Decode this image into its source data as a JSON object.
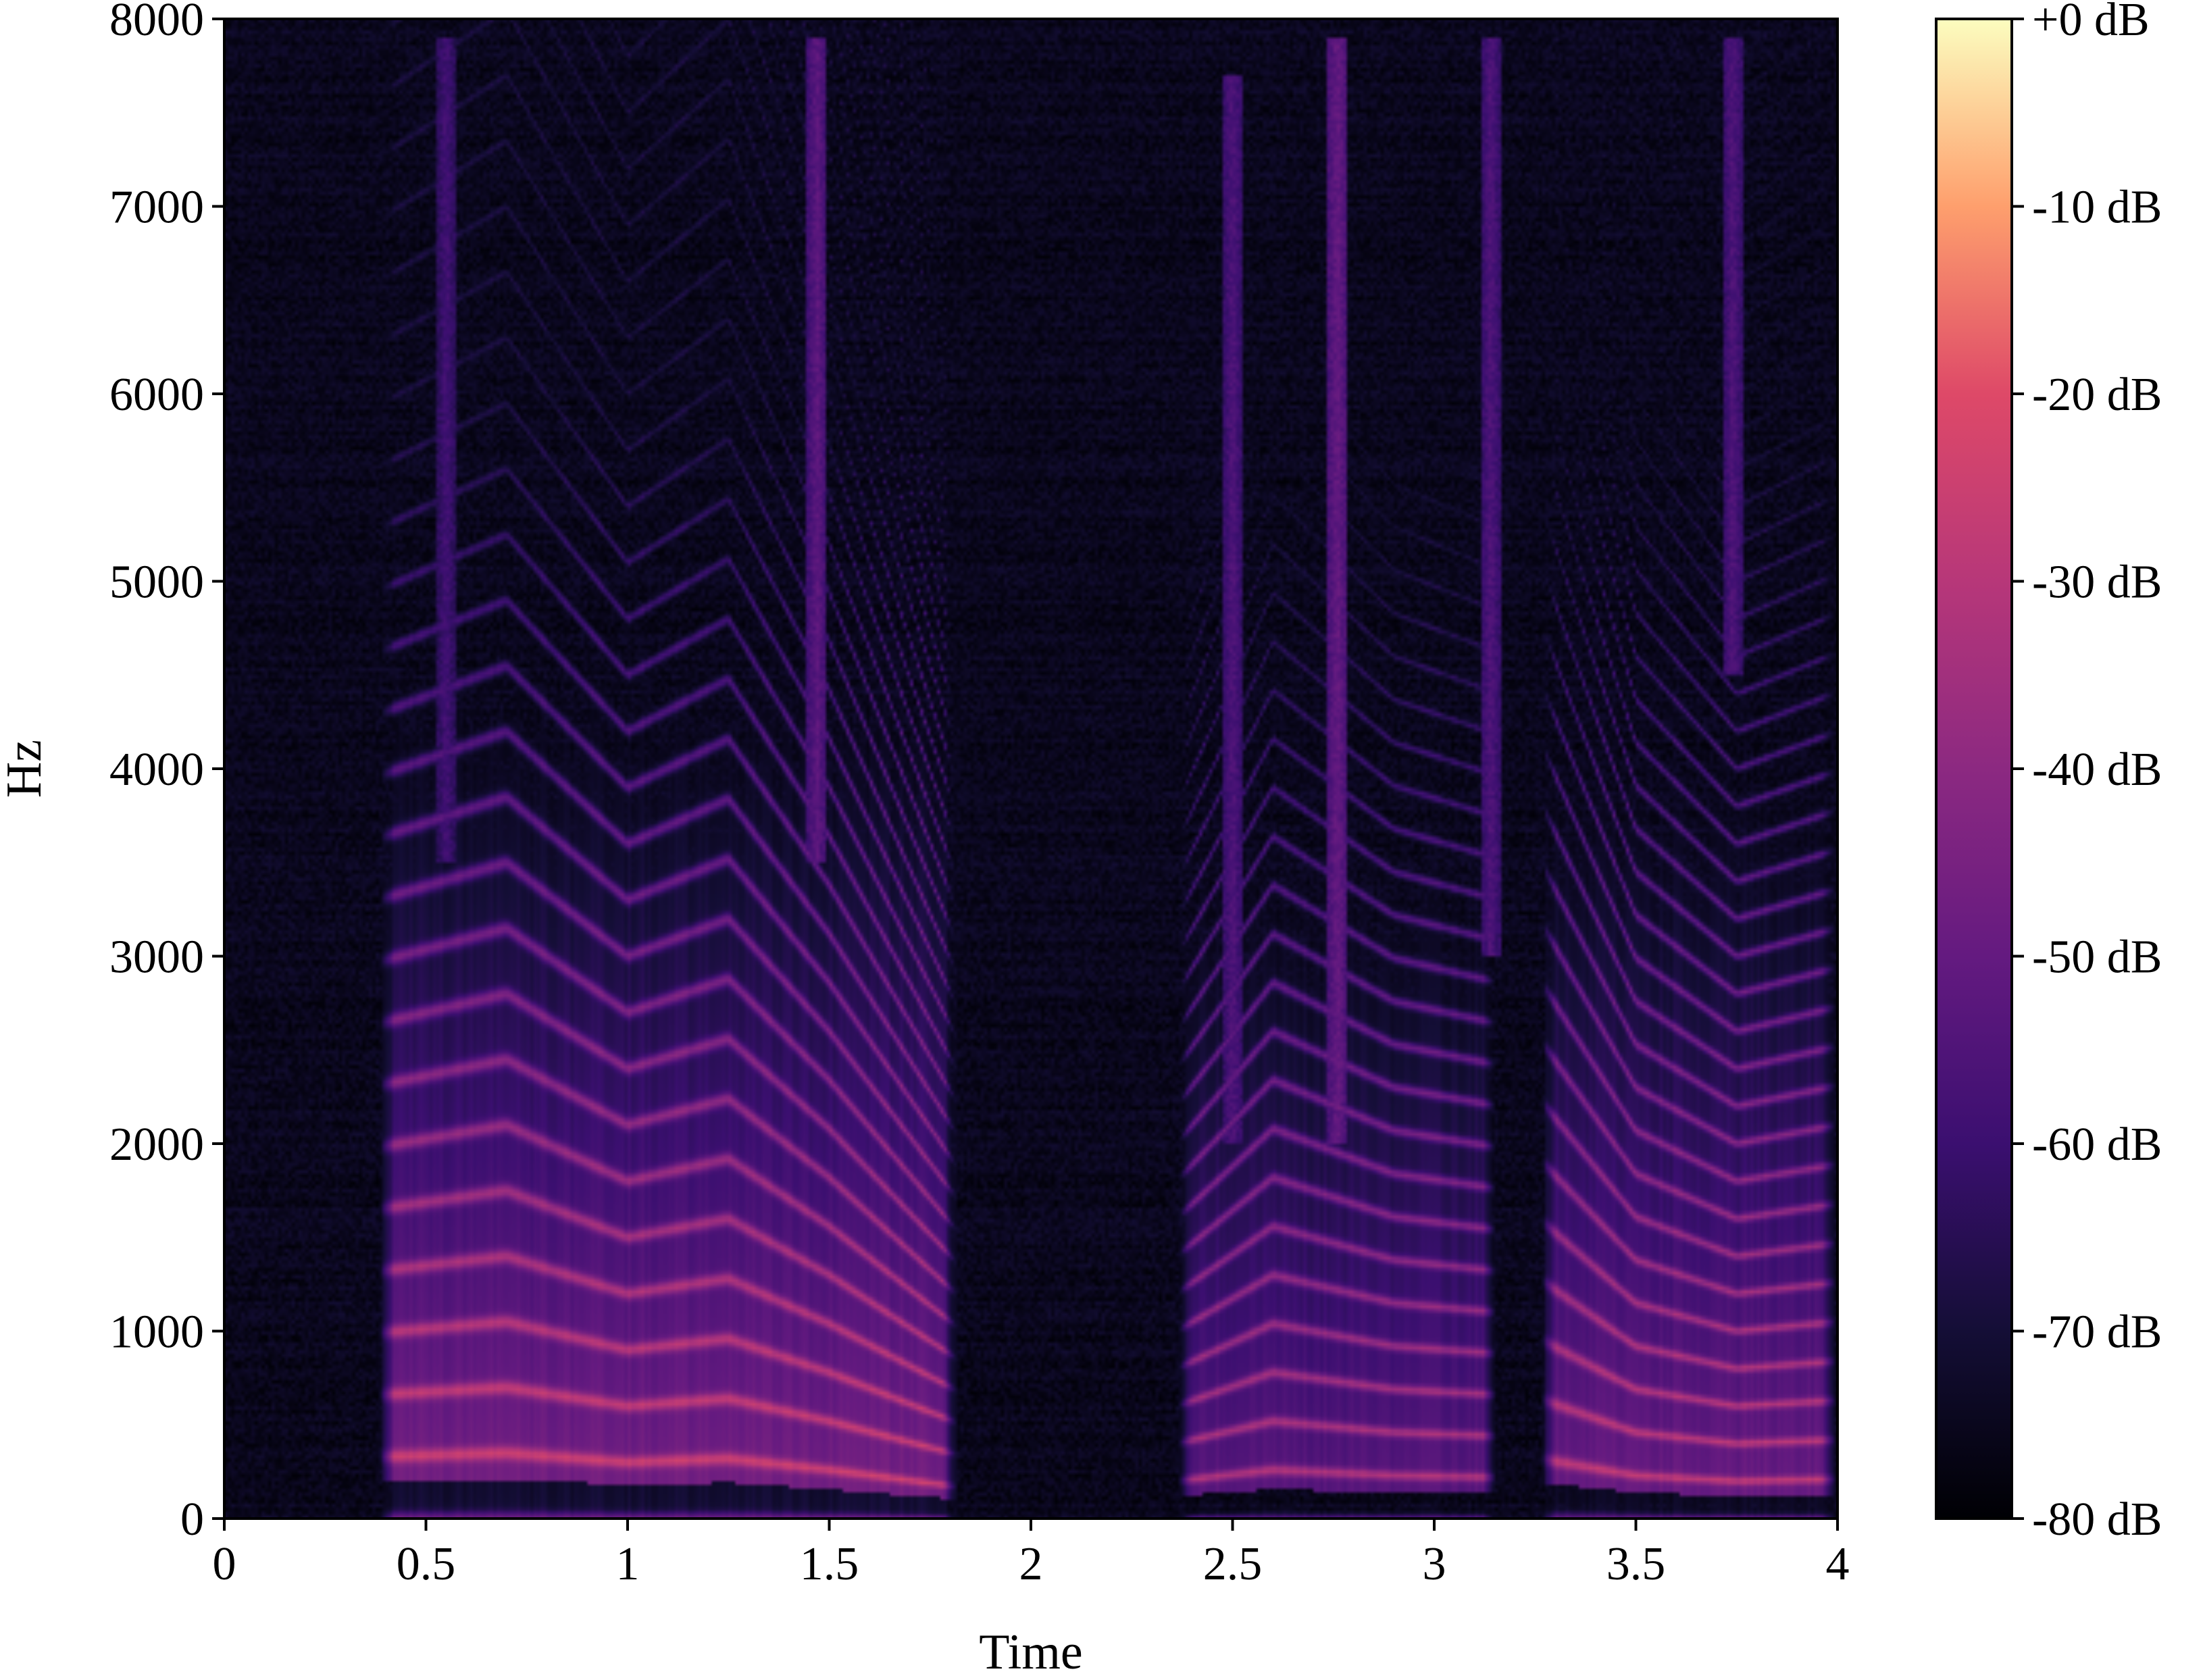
{
  "chart_data": {
    "type": "heatmap",
    "title": "",
    "xlabel": "Time",
    "ylabel": "Hz",
    "xlim": [
      0,
      4.0
    ],
    "ylim": [
      0,
      8000
    ],
    "xticks": [
      0,
      0.5,
      1,
      1.5,
      2,
      2.5,
      3,
      3.5,
      4
    ],
    "xtick_labels": [
      "0",
      "0.5",
      "1",
      "1.5",
      "2",
      "2.5",
      "3",
      "3.5",
      "4"
    ],
    "yticks": [
      0,
      1000,
      2000,
      3000,
      4000,
      5000,
      6000,
      7000,
      8000
    ],
    "ytick_labels": [
      "0",
      "1000",
      "2000",
      "3000",
      "4000",
      "5000",
      "6000",
      "7000",
      "8000"
    ],
    "colormap": "magma",
    "colorbar": {
      "range_db": [
        -80,
        0
      ],
      "ticks": [
        0,
        -10,
        -20,
        -30,
        -40,
        -50,
        -60,
        -70,
        -80
      ],
      "tick_labels": [
        "+0 dB",
        "-10 dB",
        "-20 dB",
        "-30 dB",
        "-40 dB",
        "-50 dB",
        "-60 dB",
        "-70 dB",
        "-80 dB"
      ]
    },
    "voiced_segments": [
      {
        "start": 0.38,
        "end": 1.82,
        "f0_hz": [
          [
            0.38,
            330
          ],
          [
            0.7,
            350
          ],
          [
            1.0,
            300
          ],
          [
            1.25,
            320
          ],
          [
            1.5,
            260
          ],
          [
            1.82,
            170
          ]
        ],
        "peak_db": -15
      },
      {
        "start": 2.36,
        "end": 3.16,
        "f0_hz": [
          [
            2.36,
            200
          ],
          [
            2.6,
            260
          ],
          [
            2.9,
            230
          ],
          [
            3.16,
            220
          ]
        ],
        "peak_db": -22
      },
      {
        "start": 3.26,
        "end": 4.0,
        "f0_hz": [
          [
            3.26,
            320
          ],
          [
            3.5,
            230
          ],
          [
            3.75,
            200
          ],
          [
            4.0,
            210
          ]
        ],
        "peak_db": -18
      }
    ],
    "fricative_streaks": [
      {
        "time": 0.55,
        "low_hz": 3500,
        "high_hz": 7900,
        "db": -58
      },
      {
        "time": 1.47,
        "low_hz": 3500,
        "high_hz": 7900,
        "db": -52
      },
      {
        "time": 2.5,
        "low_hz": 2000,
        "high_hz": 7700,
        "db": -55
      },
      {
        "time": 2.76,
        "low_hz": 2000,
        "high_hz": 7900,
        "db": -50
      },
      {
        "time": 3.14,
        "low_hz": 3000,
        "high_hz": 7900,
        "db": -55
      },
      {
        "time": 3.74,
        "low_hz": 4500,
        "high_hz": 7900,
        "db": -55
      }
    ],
    "background_db": -78
  }
}
